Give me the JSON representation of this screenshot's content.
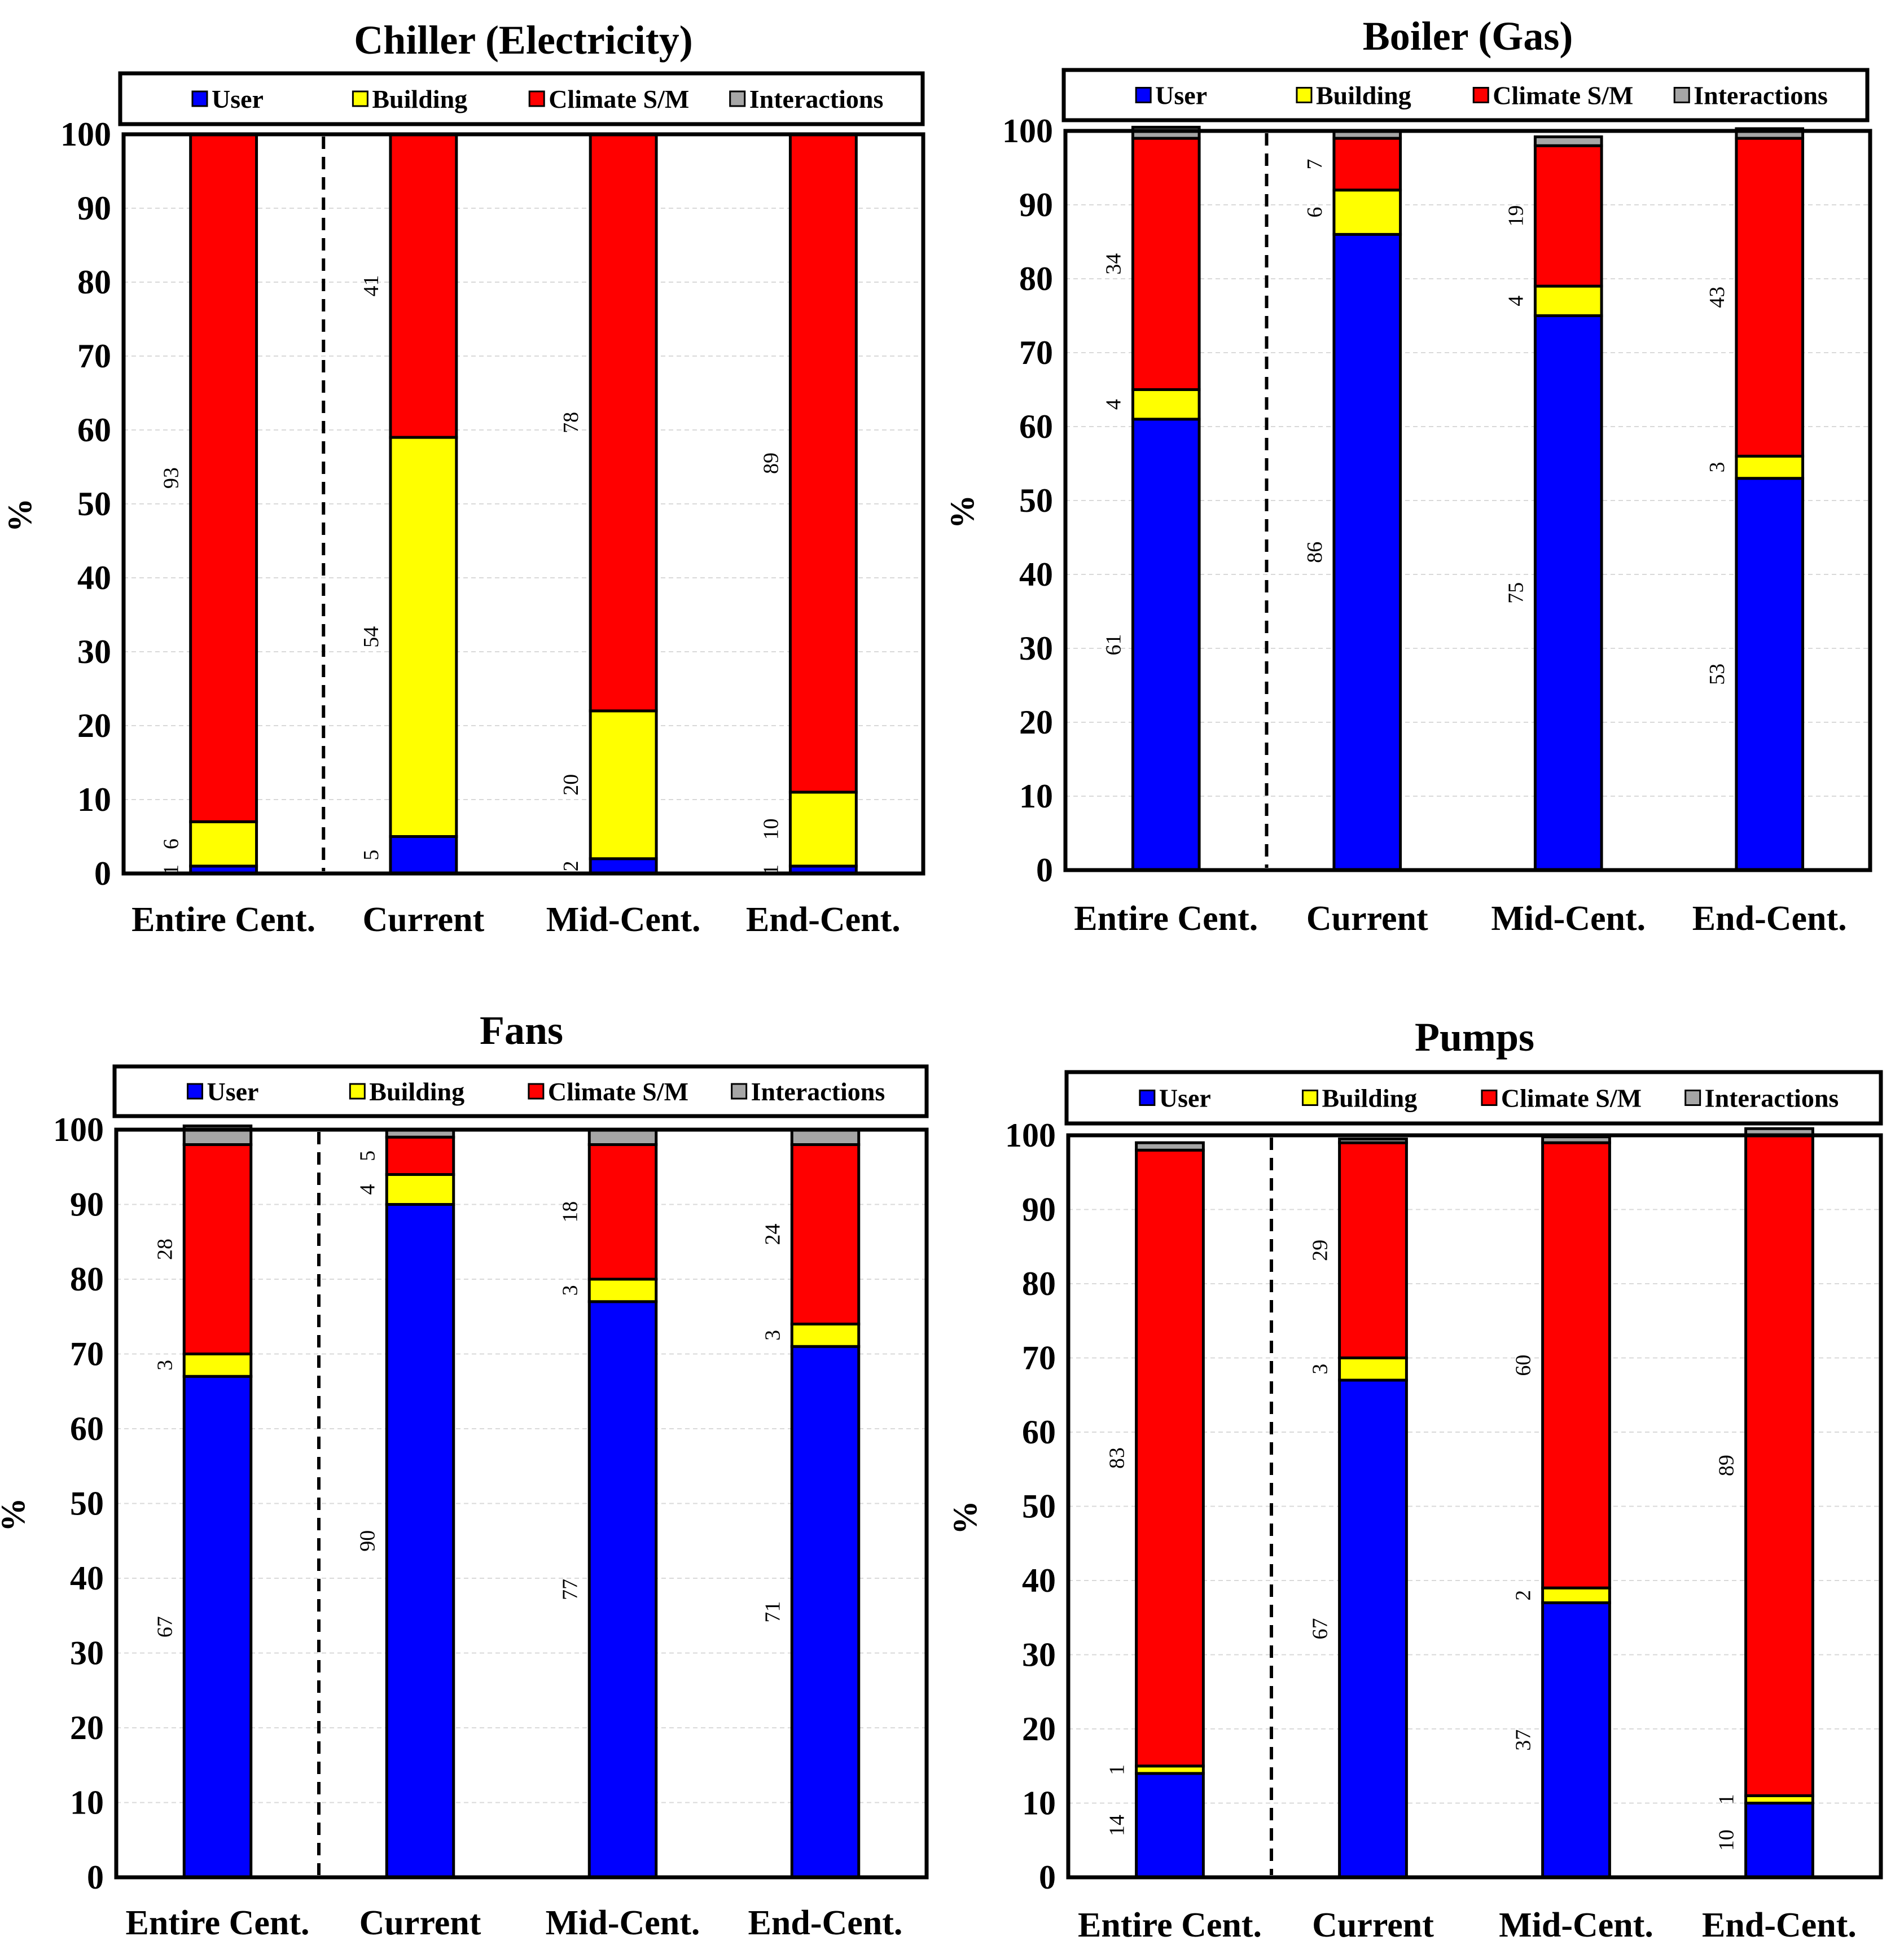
{
  "colors": {
    "user": "#0000ff",
    "building": "#ffff00",
    "climate": "#ff0000",
    "interactions": "#a6a6a6",
    "axis": "#000000",
    "grid": "#d9d9d9"
  },
  "chart_data": [
    {
      "type": "bar",
      "stacked": true,
      "title": "Chiller (Electricity)",
      "ylabel": "%",
      "ylim": [
        0,
        100
      ],
      "yticks": [
        "0",
        "10",
        "20",
        "30",
        "40",
        "50",
        "60",
        "70",
        "80",
        "90",
        "100"
      ],
      "legend": [
        "User",
        "Building",
        "Climate S/M",
        "Interactions"
      ],
      "legend_position": "top",
      "categories": [
        "Entire Cent.",
        "Current",
        "Mid-Cent.",
        "End-Cent."
      ],
      "series": [
        {
          "name": "User",
          "values": [
            1,
            5,
            2,
            1
          ]
        },
        {
          "name": "Building",
          "values": [
            6,
            54,
            20,
            10
          ]
        },
        {
          "name": "Climate S/M",
          "values": [
            93,
            41,
            78,
            89
          ]
        },
        {
          "name": "Interactions",
          "values": [
            0,
            0,
            0,
            0
          ]
        }
      ],
      "data_labels": [
        [
          "1",
          "5",
          "2",
          "1"
        ],
        [
          "6",
          "54",
          "20",
          "10"
        ],
        [
          "93",
          "41",
          "78",
          "89"
        ],
        [
          "",
          "",
          "",
          ""
        ]
      ]
    },
    {
      "type": "bar",
      "stacked": true,
      "title": "Boiler (Gas)",
      "ylabel": "%",
      "ylim": [
        0,
        100
      ],
      "yticks": [
        "0",
        "10",
        "20",
        "30",
        "40",
        "50",
        "60",
        "70",
        "80",
        "90",
        "100"
      ],
      "legend": [
        "User",
        "Building",
        "Climate S/M",
        "Interactions"
      ],
      "legend_position": "top",
      "categories": [
        "Entire Cent.",
        "Current",
        "Mid-Cent.",
        "End-Cent."
      ],
      "series": [
        {
          "name": "User",
          "values": [
            61,
            86,
            75,
            53
          ]
        },
        {
          "name": "Building",
          "values": [
            4,
            6,
            4,
            3
          ]
        },
        {
          "name": "Climate S/M",
          "values": [
            34,
            7,
            19,
            43
          ]
        },
        {
          "name": "Interactions",
          "values": [
            1.5,
            1,
            1.2,
            1.3
          ]
        }
      ],
      "data_labels": [
        [
          "61",
          "86",
          "75",
          "53"
        ],
        [
          "4",
          "6",
          "4",
          "3"
        ],
        [
          "34",
          "7",
          "19",
          "43"
        ],
        [
          "",
          "",
          "",
          ""
        ]
      ]
    },
    {
      "type": "bar",
      "stacked": true,
      "title": "Fans",
      "ylabel": "%",
      "ylim": [
        0,
        100
      ],
      "yticks": [
        "0",
        "10",
        "20",
        "30",
        "40",
        "50",
        "60",
        "70",
        "80",
        "90",
        "100"
      ],
      "legend": [
        "User",
        "Building",
        "Climate S/M",
        "Interactions"
      ],
      "legend_position": "top",
      "categories": [
        "Entire Cent.",
        "Current",
        "Mid-Cent.",
        "End-Cent."
      ],
      "series": [
        {
          "name": "User",
          "values": [
            67,
            90,
            77,
            71
          ]
        },
        {
          "name": "Building",
          "values": [
            3,
            4,
            3,
            3
          ]
        },
        {
          "name": "Climate S/M",
          "values": [
            28,
            5,
            18,
            24
          ]
        },
        {
          "name": "Interactions",
          "values": [
            2.5,
            1,
            2,
            2
          ]
        }
      ],
      "data_labels": [
        [
          "67",
          "90",
          "77",
          "71"
        ],
        [
          "3",
          "4",
          "3",
          "3"
        ],
        [
          "28",
          "5",
          "18",
          "24"
        ],
        [
          "",
          "",
          "",
          ""
        ]
      ]
    },
    {
      "type": "bar",
      "stacked": true,
      "title": "Pumps",
      "ylabel": "%",
      "ylim": [
        0,
        100
      ],
      "yticks": [
        "0",
        "10",
        "20",
        "30",
        "40",
        "50",
        "60",
        "70",
        "80",
        "90",
        "100"
      ],
      "legend": [
        "User",
        "Building",
        "Climate S/M",
        "Interactions"
      ],
      "legend_position": "top",
      "categories": [
        "Entire Cent.",
        "Current",
        "Mid-Cent.",
        "End-Cent."
      ],
      "series": [
        {
          "name": "User",
          "values": [
            14,
            67,
            37,
            10
          ]
        },
        {
          "name": "Building",
          "values": [
            1,
            3,
            2,
            1
          ]
        },
        {
          "name": "Climate S/M",
          "values": [
            83,
            29,
            60,
            89
          ]
        },
        {
          "name": "Interactions",
          "values": [
            1,
            0.5,
            0.8,
            0.9
          ]
        }
      ],
      "data_labels": [
        [
          "14",
          "67",
          "37",
          "10"
        ],
        [
          "1",
          "3",
          "2",
          "1"
        ],
        [
          "83",
          "29",
          "60",
          "89"
        ],
        [
          "",
          "",
          "",
          ""
        ]
      ]
    }
  ]
}
